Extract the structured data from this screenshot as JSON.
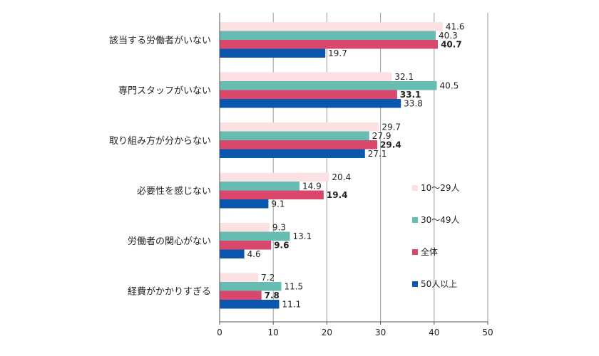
{
  "chart_data": {
    "type": "bar",
    "orientation": "horizontal",
    "categories": [
      "該当する労働者がいない",
      "専門スタッフがいない",
      "取り組み方が分からない",
      "必要性を感じない",
      "労働者の関心がない",
      "経費がかかりすぎる"
    ],
    "series": [
      {
        "name": "10～29人",
        "color": "#fce1e3",
        "values": [
          41.6,
          32.1,
          29.7,
          20.4,
          9.3,
          7.2
        ]
      },
      {
        "name": "30～49人",
        "color": "#68bdb3",
        "values": [
          40.3,
          40.5,
          27.9,
          14.9,
          13.1,
          11.5
        ]
      },
      {
        "name": "全体",
        "color": "#d9476d",
        "values": [
          40.7,
          33.1,
          29.4,
          19.4,
          9.6,
          7.8
        ],
        "bold_labels": true
      },
      {
        "name": "50人以上",
        "color": "#0a57ad",
        "values": [
          19.7,
          33.8,
          27.1,
          9.1,
          4.6,
          11.1
        ]
      }
    ],
    "value_labels": [
      [
        "41.6",
        "32.1",
        "29.7",
        "20.4",
        "9.3",
        "7.2"
      ],
      [
        "40.3",
        "40.5",
        "27.9",
        "14.9",
        "13.1",
        "11.5"
      ],
      [
        "40.7",
        "33.1",
        "29.4",
        "19.4",
        "9.6",
        "7.8"
      ],
      [
        "19.7",
        "33.8",
        "27.1",
        "9.1",
        "4.6",
        "11.1"
      ]
    ],
    "xlim": [
      0,
      50
    ],
    "xticks": [
      "0",
      "10",
      "20",
      "30",
      "40",
      "50"
    ],
    "grid": "vertical",
    "legend_position": "right-inside",
    "title": "",
    "xlabel": "",
    "ylabel": ""
  }
}
